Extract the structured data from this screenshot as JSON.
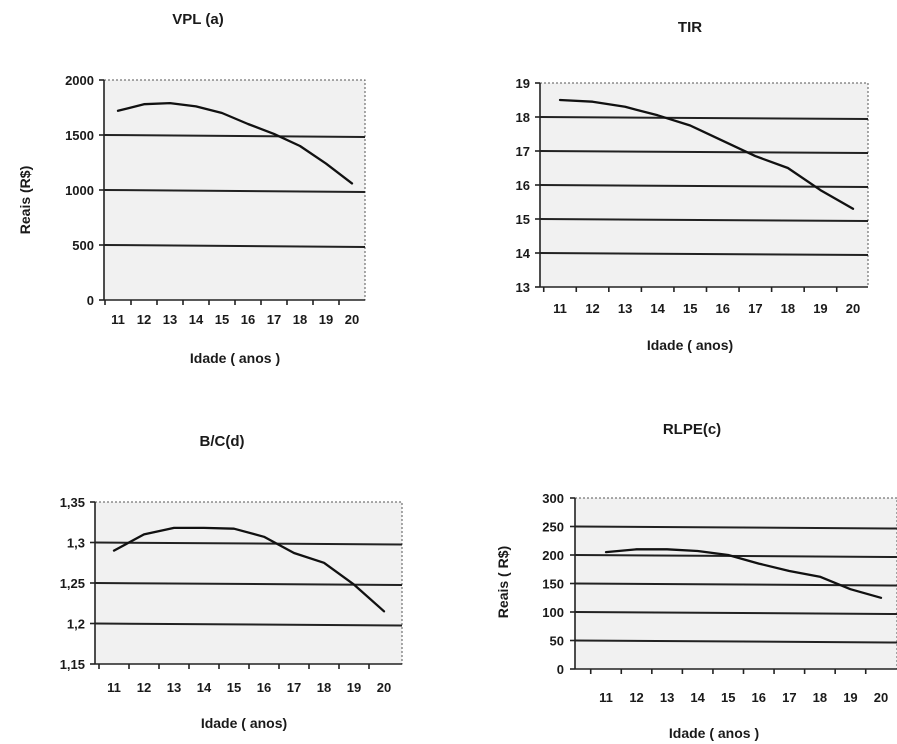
{
  "chart_data": [
    {
      "id": "vpl",
      "type": "line",
      "title": "VPL (a)",
      "xlabel": "Idade ( anos )",
      "ylabel": "Reais (R$)",
      "categories": [
        "11",
        "12",
        "13",
        "14",
        "15",
        "16",
        "17",
        "18",
        "19",
        "20"
      ],
      "yticks": [
        "0",
        "500",
        "1000",
        "1500",
        "2000"
      ],
      "ylim": [
        0,
        2000
      ],
      "values": [
        1720,
        1780,
        1790,
        1760,
        1700,
        1600,
        1510,
        1400,
        1240,
        1060
      ],
      "grid": true
    },
    {
      "id": "tir",
      "type": "line",
      "title": "TIR",
      "xlabel": "Idade ( anos)",
      "ylabel": "",
      "categories": [
        "11",
        "12",
        "13",
        "14",
        "15",
        "16",
        "17",
        "18",
        "19",
        "20"
      ],
      "yticks": [
        "13",
        "14",
        "15",
        "16",
        "17",
        "18",
        "19"
      ],
      "ylim": [
        13,
        19
      ],
      "values": [
        18.5,
        18.45,
        18.3,
        18.05,
        17.75,
        17.3,
        16.85,
        16.5,
        15.85,
        15.3
      ],
      "grid": true
    },
    {
      "id": "bc",
      "type": "line",
      "title": "B/C(d)",
      "xlabel": "Idade ( anos)",
      "ylabel": "",
      "categories": [
        "11",
        "12",
        "13",
        "14",
        "15",
        "16",
        "17",
        "18",
        "19",
        "20"
      ],
      "yticks": [
        "1,15",
        "1,2",
        "1,25",
        "1,3",
        "1,35"
      ],
      "ylim": [
        1.15,
        1.35
      ],
      "values": [
        1.29,
        1.31,
        1.318,
        1.318,
        1.317,
        1.307,
        1.287,
        1.275,
        1.248,
        1.215
      ],
      "grid": true
    },
    {
      "id": "rlpe",
      "type": "line",
      "title": "RLPE(c)",
      "xlabel": "Idade ( anos )",
      "ylabel": "Reais ( R$)",
      "categories": [
        "11",
        "12",
        "13",
        "14",
        "15",
        "16",
        "17",
        "18",
        "19",
        "20"
      ],
      "yticks": [
        "0",
        "50",
        "100",
        "150",
        "200",
        "250",
        "300"
      ],
      "ylim": [
        0,
        300
      ],
      "values": [
        205,
        210,
        210,
        207,
        200,
        185,
        172,
        162,
        140,
        125
      ],
      "grid": true
    }
  ]
}
